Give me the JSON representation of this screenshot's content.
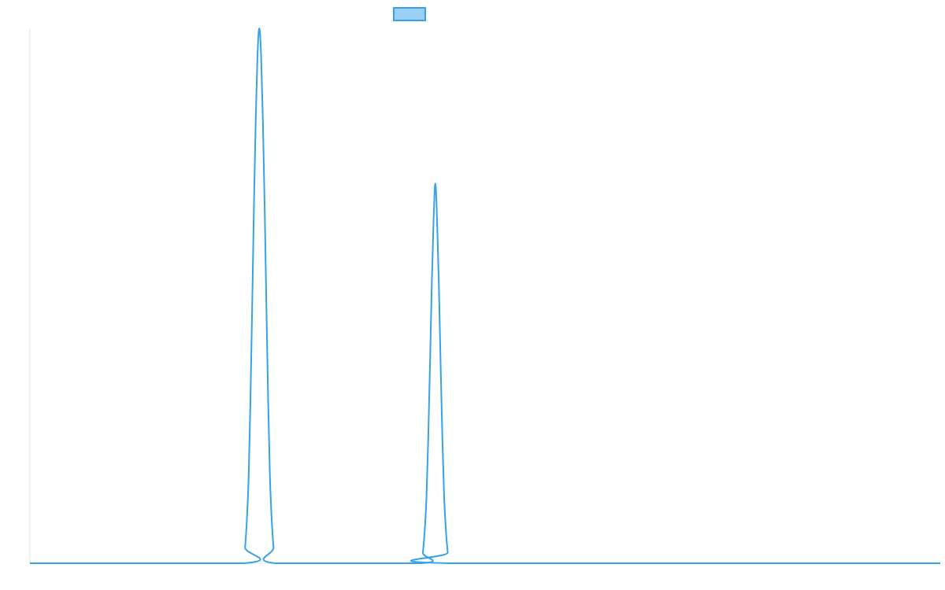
{
  "chart_data": {
    "type": "line",
    "title": "",
    "xlabel": "",
    "ylabel": "",
    "legend": {
      "placement": "top-center",
      "label": ""
    },
    "grid": false,
    "xlim": [
      0,
      512
    ],
    "ylim": [
      0,
      1
    ],
    "series": [
      {
        "color": "#36a2eb",
        "fill": "#9ad0f5",
        "points": [
          [
            0,
            0
          ],
          [
            120,
            0
          ],
          [
            121,
            0.03
          ],
          [
            122,
            0.08
          ],
          [
            123,
            0.16
          ],
          [
            124,
            0.3
          ],
          [
            125,
            0.48
          ],
          [
            126,
            0.67
          ],
          [
            127,
            0.83
          ],
          [
            128,
            0.95
          ],
          [
            129,
            1.0
          ],
          [
            130,
            0.95
          ],
          [
            131,
            0.83
          ],
          [
            132,
            0.67
          ],
          [
            133,
            0.48
          ],
          [
            134,
            0.3
          ],
          [
            135,
            0.16
          ],
          [
            136,
            0.08
          ],
          [
            137,
            0.03
          ],
          [
            138,
            0
          ],
          [
            220,
            0
          ],
          [
            221,
            0.02
          ],
          [
            222,
            0.06
          ],
          [
            223,
            0.12
          ],
          [
            224,
            0.23
          ],
          [
            225,
            0.37
          ],
          [
            226,
            0.52
          ],
          [
            227,
            0.64
          ],
          [
            228,
            0.71
          ],
          [
            229,
            0.64
          ],
          [
            230,
            0.52
          ],
          [
            231,
            0.37
          ],
          [
            232,
            0.23
          ],
          [
            233,
            0.12
          ],
          [
            234,
            0.06
          ],
          [
            235,
            0.02
          ],
          [
            236,
            0
          ],
          [
            512,
            0
          ]
        ]
      }
    ]
  }
}
